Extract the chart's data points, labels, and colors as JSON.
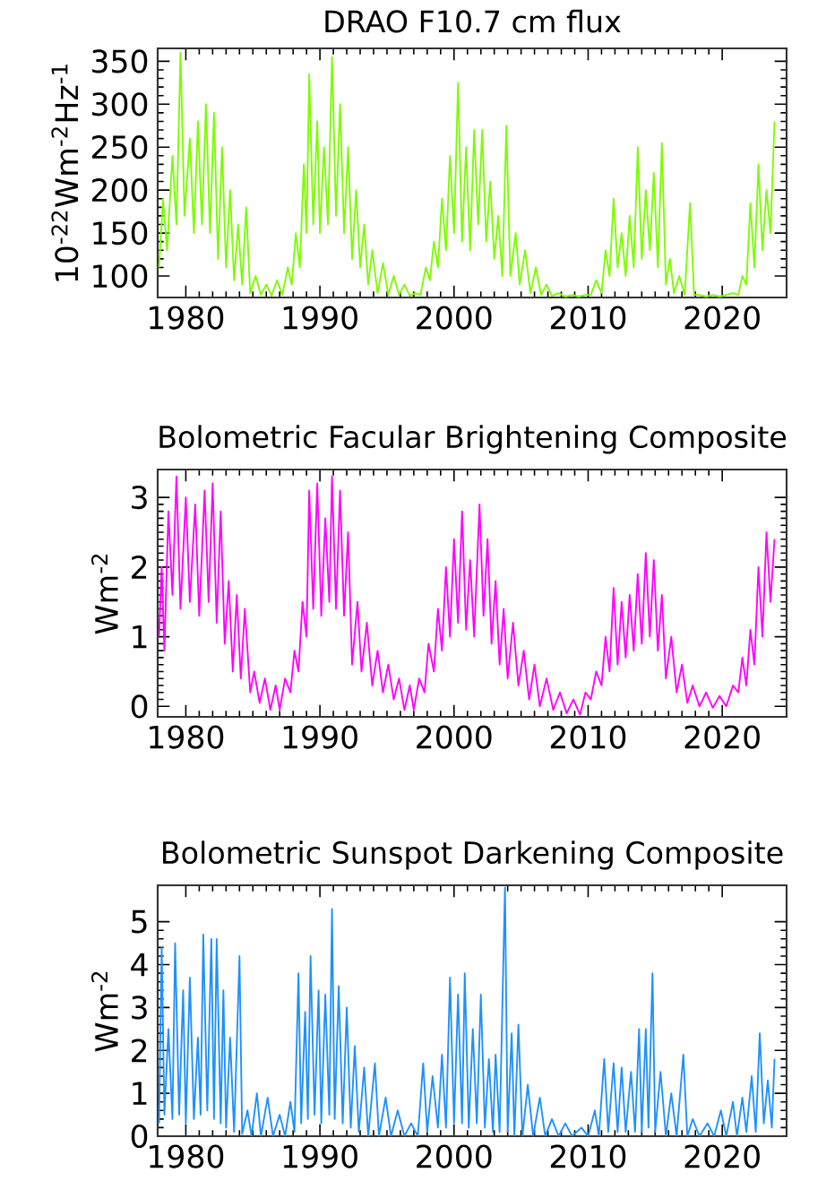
{
  "chart_data": [
    {
      "type": "line",
      "title": "DRAO F10.7 cm flux",
      "ylabel": "10$^{-22}$Wm$^{-2}$Hz$^{-1}$",
      "color": "#7cfc00",
      "xlim": [
        1977.9,
        2024.8
      ],
      "ylim": [
        75,
        365
      ],
      "xticks": [
        1980,
        1990,
        2000,
        2010,
        2020
      ],
      "yticks": [
        100,
        150,
        200,
        250,
        300,
        350
      ],
      "x": [
        1978.0,
        1978.3,
        1978.6,
        1979.0,
        1979.3,
        1979.6,
        1979.9,
        1980.3,
        1980.6,
        1980.9,
        1981.2,
        1981.5,
        1981.8,
        1982.1,
        1982.4,
        1982.7,
        1983.0,
        1983.3,
        1983.6,
        1983.9,
        1984.2,
        1984.5,
        1984.8,
        1985.2,
        1985.6,
        1986.0,
        1986.4,
        1986.8,
        1987.2,
        1987.6,
        1987.9,
        1988.2,
        1988.5,
        1988.8,
        1989.0,
        1989.2,
        1989.5,
        1989.8,
        1990.0,
        1990.3,
        1990.6,
        1990.9,
        1991.2,
        1991.5,
        1991.8,
        1992.1,
        1992.4,
        1992.7,
        1993.0,
        1993.3,
        1993.6,
        1993.9,
        1994.3,
        1994.7,
        1995.1,
        1995.5,
        1995.9,
        1996.3,
        1996.7,
        1997.1,
        1997.5,
        1997.9,
        1998.2,
        1998.5,
        1998.8,
        1999.1,
        1999.4,
        1999.7,
        2000.0,
        2000.3,
        2000.6,
        2000.9,
        2001.2,
        2001.5,
        2001.8,
        2002.1,
        2002.4,
        2002.7,
        2003.0,
        2003.3,
        2003.6,
        2003.9,
        2004.2,
        2004.6,
        2004.9,
        2005.3,
        2005.7,
        2006.1,
        2006.5,
        2006.9,
        2007.3,
        2007.8,
        2008.3,
        2008.8,
        2009.3,
        2009.8,
        2010.2,
        2010.6,
        2011.0,
        2011.3,
        2011.6,
        2011.9,
        2012.2,
        2012.5,
        2012.8,
        2013.1,
        2013.4,
        2013.7,
        2014.0,
        2014.3,
        2014.6,
        2014.9,
        2015.2,
        2015.5,
        2015.8,
        2016.1,
        2016.4,
        2016.8,
        2017.2,
        2017.6,
        2017.9,
        2018.3,
        2018.8,
        2019.3,
        2019.8,
        2020.3,
        2020.8,
        2021.2,
        2021.5,
        2021.8,
        2022.1,
        2022.4,
        2022.7,
        2023.0,
        2023.3,
        2023.6,
        2023.9
      ],
      "values": [
        110,
        190,
        130,
        240,
        160,
        360,
        170,
        260,
        150,
        280,
        160,
        300,
        150,
        290,
        120,
        250,
        110,
        200,
        95,
        160,
        90,
        180,
        80,
        100,
        78,
        90,
        77,
        95,
        78,
        110,
        90,
        150,
        110,
        230,
        150,
        335,
        160,
        280,
        150,
        250,
        160,
        355,
        170,
        300,
        150,
        250,
        120,
        200,
        110,
        160,
        90,
        130,
        80,
        115,
        78,
        100,
        78,
        90,
        77,
        80,
        78,
        110,
        95,
        140,
        110,
        190,
        130,
        240,
        150,
        325,
        140,
        250,
        130,
        270,
        160,
        270,
        140,
        210,
        120,
        170,
        100,
        275,
        100,
        150,
        90,
        130,
        80,
        110,
        78,
        90,
        77,
        80,
        76,
        78,
        76,
        78,
        78,
        95,
        80,
        130,
        100,
        190,
        110,
        150,
        100,
        170,
        110,
        250,
        120,
        200,
        130,
        220,
        110,
        255,
        90,
        120,
        80,
        100,
        78,
        185,
        78,
        78,
        76,
        78,
        76,
        78,
        80,
        78,
        100,
        90,
        185,
        110,
        230,
        130,
        200,
        150,
        280
      ]
    },
    {
      "type": "line",
      "title": "Bolometric Facular Brightening Composite",
      "ylabel": "Wm$^{-2}$",
      "color": "#ff00ff",
      "xlim": [
        1977.9,
        2024.8
      ],
      "ylim": [
        -0.15,
        3.4
      ],
      "xticks": [
        1980,
        1990,
        2000,
        2010,
        2020
      ],
      "yticks": [
        0,
        1,
        2,
        3
      ],
      "x": [
        1978.0,
        1978.2,
        1978.4,
        1978.7,
        1979.0,
        1979.3,
        1979.6,
        1980.0,
        1980.3,
        1980.7,
        1981.0,
        1981.4,
        1981.7,
        1982.0,
        1982.3,
        1982.6,
        1982.9,
        1983.2,
        1983.5,
        1983.8,
        1984.1,
        1984.4,
        1984.8,
        1985.1,
        1985.5,
        1985.9,
        1986.3,
        1986.7,
        1987.0,
        1987.4,
        1987.8,
        1988.1,
        1988.4,
        1988.7,
        1989.0,
        1989.2,
        1989.5,
        1989.8,
        1990.1,
        1990.4,
        1990.7,
        1990.9,
        1991.2,
        1991.5,
        1991.8,
        1992.1,
        1992.4,
        1992.8,
        1993.1,
        1993.5,
        1993.9,
        1994.3,
        1994.7,
        1995.1,
        1995.5,
        1995.9,
        1996.3,
        1996.7,
        1997.0,
        1997.4,
        1997.8,
        1998.1,
        1998.5,
        1998.8,
        1999.1,
        1999.4,
        1999.7,
        2000.0,
        2000.3,
        2000.6,
        2000.9,
        2001.2,
        2001.5,
        2001.9,
        2002.2,
        2002.5,
        2002.8,
        2003.1,
        2003.4,
        2003.7,
        2004.0,
        2004.4,
        2004.8,
        2005.2,
        2005.6,
        2006.0,
        2006.4,
        2006.9,
        2007.4,
        2007.9,
        2008.4,
        2008.9,
        2009.4,
        2009.8,
        2010.2,
        2010.6,
        2011.0,
        2011.3,
        2011.6,
        2011.9,
        2012.2,
        2012.5,
        2012.8,
        2013.1,
        2013.4,
        2013.7,
        2014.0,
        2014.3,
        2014.6,
        2014.9,
        2015.2,
        2015.5,
        2015.8,
        2016.2,
        2016.6,
        2017.0,
        2017.4,
        2017.8,
        2018.3,
        2018.8,
        2019.3,
        2019.8,
        2020.3,
        2020.8,
        2021.2,
        2021.5,
        2021.8,
        2022.1,
        2022.4,
        2022.7,
        2023.0,
        2023.3,
        2023.6,
        2023.9
      ],
      "values": [
        1.0,
        2.0,
        0.8,
        2.8,
        1.6,
        3.3,
        1.4,
        3.0,
        1.5,
        2.9,
        1.3,
        3.1,
        1.5,
        3.2,
        1.2,
        2.8,
        0.9,
        1.8,
        0.5,
        1.6,
        0.4,
        1.4,
        0.2,
        0.5,
        0.05,
        0.4,
        -0.05,
        0.3,
        -0.05,
        0.4,
        0.2,
        0.8,
        0.5,
        1.5,
        1.0,
        3.1,
        1.4,
        3.2,
        1.3,
        2.7,
        1.5,
        3.3,
        1.4,
        3.1,
        1.3,
        2.5,
        0.6,
        1.5,
        0.5,
        1.2,
        0.3,
        0.8,
        0.2,
        0.6,
        0.1,
        0.4,
        -0.05,
        0.3,
        -0.05,
        0.4,
        0.2,
        0.9,
        0.5,
        1.4,
        0.8,
        2.0,
        1.0,
        2.4,
        1.2,
        2.8,
        1.1,
        2.1,
        1.0,
        2.9,
        1.3,
        2.4,
        0.9,
        1.8,
        0.6,
        1.4,
        0.4,
        1.2,
        0.3,
        0.8,
        0.1,
        0.6,
        0.0,
        0.4,
        -0.05,
        0.2,
        -0.1,
        0.1,
        -0.12,
        0.2,
        0.1,
        0.5,
        0.3,
        1.0,
        0.5,
        1.7,
        0.6,
        1.5,
        0.7,
        1.6,
        0.8,
        1.9,
        0.9,
        2.2,
        1.0,
        2.1,
        0.8,
        1.6,
        0.4,
        1.0,
        0.2,
        0.6,
        0.05,
        0.3,
        0.0,
        0.2,
        -0.02,
        0.15,
        0.0,
        0.3,
        0.2,
        0.7,
        0.3,
        1.1,
        0.6,
        2.0,
        1.0,
        2.5,
        1.5,
        2.4
      ]
    },
    {
      "type": "line",
      "title": "Bolometric Sunspot Darkening Composite",
      "ylabel": "Wm$^{-2}$",
      "color": "#1e90ff",
      "xlim": [
        1977.9,
        2024.8
      ],
      "ylim": [
        0,
        5.85
      ],
      "xticks": [
        1980,
        1990,
        2000,
        2010,
        2020
      ],
      "yticks": [
        0,
        1,
        2,
        3,
        4,
        5
      ],
      "x": [
        1978.0,
        1978.2,
        1978.4,
        1978.7,
        1979.0,
        1979.2,
        1979.5,
        1979.8,
        1980.0,
        1980.3,
        1980.6,
        1980.9,
        1981.1,
        1981.3,
        1981.6,
        1981.9,
        1982.1,
        1982.3,
        1982.6,
        1982.8,
        1983.0,
        1983.3,
        1983.6,
        1984.0,
        1984.2,
        1984.6,
        1984.9,
        1985.3,
        1985.6,
        1986.1,
        1986.5,
        1987.0,
        1987.4,
        1987.8,
        1988.1,
        1988.4,
        1988.6,
        1988.9,
        1989.1,
        1989.3,
        1989.6,
        1989.9,
        1990.1,
        1990.4,
        1990.7,
        1990.9,
        1991.1,
        1991.4,
        1991.7,
        1992.0,
        1992.3,
        1992.6,
        1992.9,
        1993.3,
        1993.6,
        1994.1,
        1994.4,
        1994.9,
        1995.3,
        1995.8,
        1996.3,
        1996.8,
        1997.3,
        1997.7,
        1998.0,
        1998.4,
        1998.8,
        1999.1,
        1999.4,
        1999.7,
        2000.0,
        2000.3,
        2000.6,
        2000.8,
        2001.1,
        2001.4,
        2001.7,
        2002.0,
        2002.3,
        2002.6,
        2002.9,
        2003.1,
        2003.4,
        2003.8,
        2004.0,
        2004.3,
        2004.5,
        2004.8,
        2005.1,
        2005.5,
        2005.9,
        2006.4,
        2006.8,
        2007.3,
        2007.8,
        2008.3,
        2008.8,
        2009.5,
        2010.0,
        2010.5,
        2010.8,
        2011.2,
        2011.5,
        2011.9,
        2012.2,
        2012.5,
        2012.8,
        2013.2,
        2013.5,
        2013.8,
        2014.0,
        2014.3,
        2014.5,
        2014.8,
        2015.0,
        2015.4,
        2015.8,
        2016.2,
        2016.6,
        2017.1,
        2017.4,
        2017.8,
        2018.3,
        2018.9,
        2019.4,
        2019.9,
        2020.3,
        2020.8,
        2021.1,
        2021.5,
        2021.8,
        2022.2,
        2022.5,
        2022.8,
        2023.1,
        2023.4,
        2023.7,
        2023.9
      ],
      "values": [
        0.3,
        4.4,
        0.5,
        2.5,
        0.4,
        4.5,
        0.5,
        3.4,
        0.3,
        3.7,
        0.4,
        2.3,
        0.5,
        4.7,
        0.6,
        4.6,
        0.4,
        4.6,
        0.3,
        3.4,
        0.2,
        2.3,
        0.1,
        4.2,
        0.05,
        0.6,
        0.0,
        1.0,
        0.0,
        0.9,
        0.0,
        0.5,
        0.0,
        0.8,
        0.1,
        3.8,
        0.3,
        2.9,
        0.4,
        4.2,
        0.5,
        3.4,
        0.3,
        3.3,
        0.5,
        5.3,
        0.4,
        3.5,
        0.3,
        3.0,
        0.2,
        2.1,
        0.1,
        1.6,
        0.0,
        1.7,
        0.0,
        0.9,
        0.0,
        0.6,
        0.0,
        0.3,
        0.0,
        1.7,
        0.1,
        1.4,
        0.2,
        1.9,
        0.2,
        3.7,
        0.3,
        3.3,
        0.3,
        3.8,
        0.2,
        2.5,
        0.3,
        3.3,
        0.2,
        1.8,
        0.1,
        1.9,
        0.1,
        5.8,
        0.1,
        2.4,
        0.0,
        2.6,
        0.0,
        1.2,
        0.0,
        0.9,
        0.0,
        0.4,
        0.0,
        0.3,
        0.0,
        0.2,
        0.0,
        0.6,
        0.0,
        1.8,
        0.1,
        1.7,
        0.1,
        1.6,
        0.1,
        1.5,
        0.1,
        2.5,
        0.1,
        2.5,
        0.2,
        3.8,
        0.1,
        1.5,
        0.0,
        1.0,
        0.0,
        1.9,
        0.0,
        0.4,
        0.0,
        0.3,
        0.0,
        0.6,
        0.0,
        0.8,
        0.0,
        0.9,
        0.1,
        1.4,
        0.1,
        2.4,
        0.3,
        1.3,
        0.2,
        1.8
      ]
    }
  ]
}
